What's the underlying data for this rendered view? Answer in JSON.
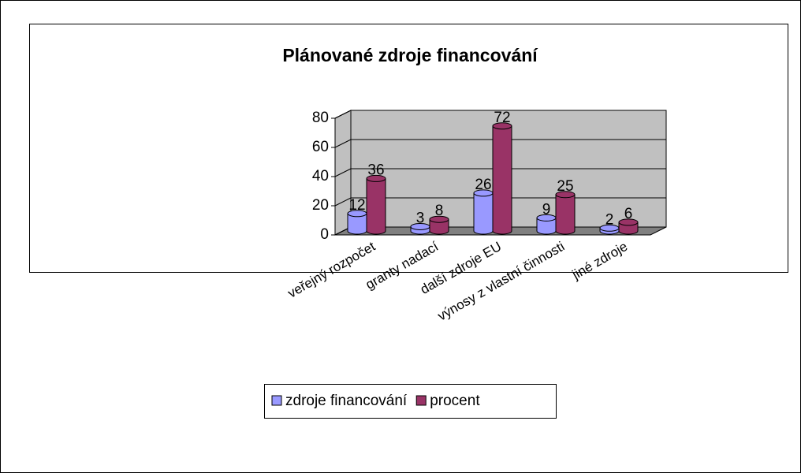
{
  "chart_data": {
    "type": "bar3d",
    "title": "Plánované zdroje financování",
    "categories": [
      "veřejný rozpočet",
      "granty nadací",
      "další zdroje EU",
      "výnosy z vlastní činnosti",
      "jiné zdroje"
    ],
    "series": [
      {
        "name": "zdroje financování",
        "color": "#9999ff",
        "values": [
          12,
          3,
          26,
          9,
          2
        ]
      },
      {
        "name": "procent",
        "color": "#993366",
        "values": [
          36,
          8,
          72,
          25,
          6
        ]
      }
    ],
    "ylim": [
      0,
      80
    ],
    "yticks": [
      0,
      20,
      40,
      60,
      80
    ],
    "grid": true,
    "legend": "bottom"
  }
}
